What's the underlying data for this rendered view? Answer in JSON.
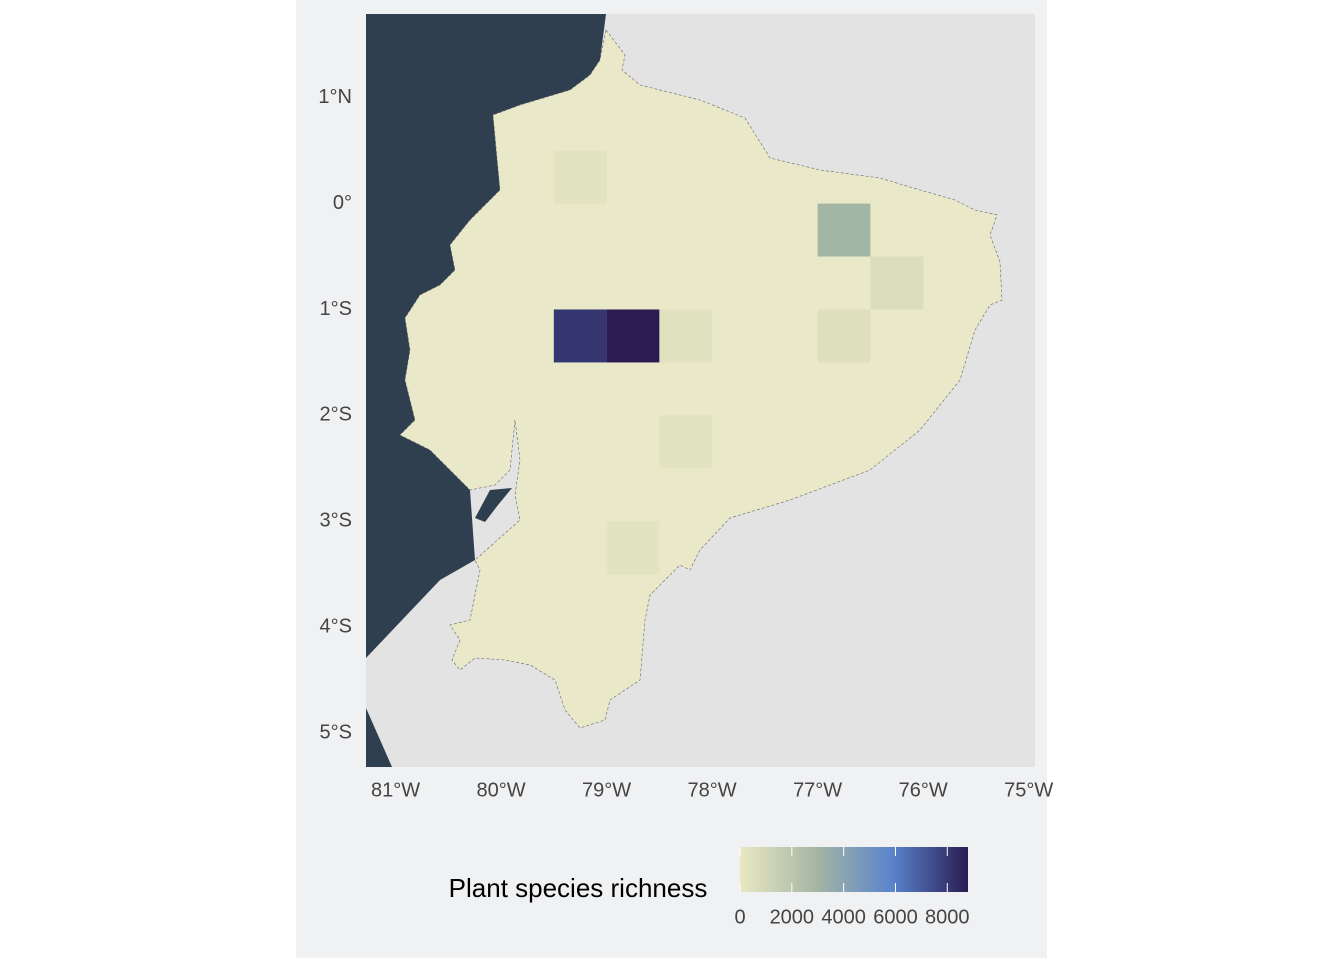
{
  "chart_data": {
    "type": "raster-map",
    "xlim": [
      -81.28,
      -74.94
    ],
    "ylim": [
      -5.32,
      1.79
    ],
    "xticks": [
      {
        "value": -81,
        "label": "81°W"
      },
      {
        "value": -80,
        "label": "80°W"
      },
      {
        "value": -79,
        "label": "79°W"
      },
      {
        "value": -78,
        "label": "78°W"
      },
      {
        "value": -77,
        "label": "77°W"
      },
      {
        "value": -76,
        "label": "76°W"
      },
      {
        "value": -75,
        "label": "75°W"
      }
    ],
    "yticks": [
      {
        "value": 1,
        "label": "1°N"
      },
      {
        "value": 0,
        "label": "0°"
      },
      {
        "value": -1,
        "label": "1°S"
      },
      {
        "value": -2,
        "label": "2°S"
      },
      {
        "value": -3,
        "label": "3°S"
      },
      {
        "value": -4,
        "label": "4°S"
      },
      {
        "value": -5,
        "label": "5°S"
      }
    ],
    "cell_size": 0.5,
    "cells": [
      {
        "lon": -79.25,
        "lat": 0.25,
        "value": 300
      },
      {
        "lon": -78.25,
        "lat": -1.25,
        "value": 400
      },
      {
        "lon": -76.25,
        "lat": -0.75,
        "value": 600
      },
      {
        "lon": -76.75,
        "lat": -1.25,
        "value": 500
      },
      {
        "lon": -78.75,
        "lat": -3.25,
        "value": 300
      },
      {
        "lon": -78.25,
        "lat": -2.25,
        "value": 350
      },
      {
        "lon": -76.75,
        "lat": -0.25,
        "value": 3000
      },
      {
        "lon": -79.25,
        "lat": -1.25,
        "value": 8100
      },
      {
        "lon": -78.75,
        "lat": -1.25,
        "value": 8800
      }
    ],
    "colorscale": [
      "#e9e8c2",
      "#a5b6a4",
      "#5a84cc",
      "#2a1c52"
    ],
    "colorlim": [
      0,
      8800
    ],
    "legend": {
      "title": "Plant species richness",
      "ticks": [
        0,
        2000,
        4000,
        6000,
        8000
      ]
    }
  }
}
